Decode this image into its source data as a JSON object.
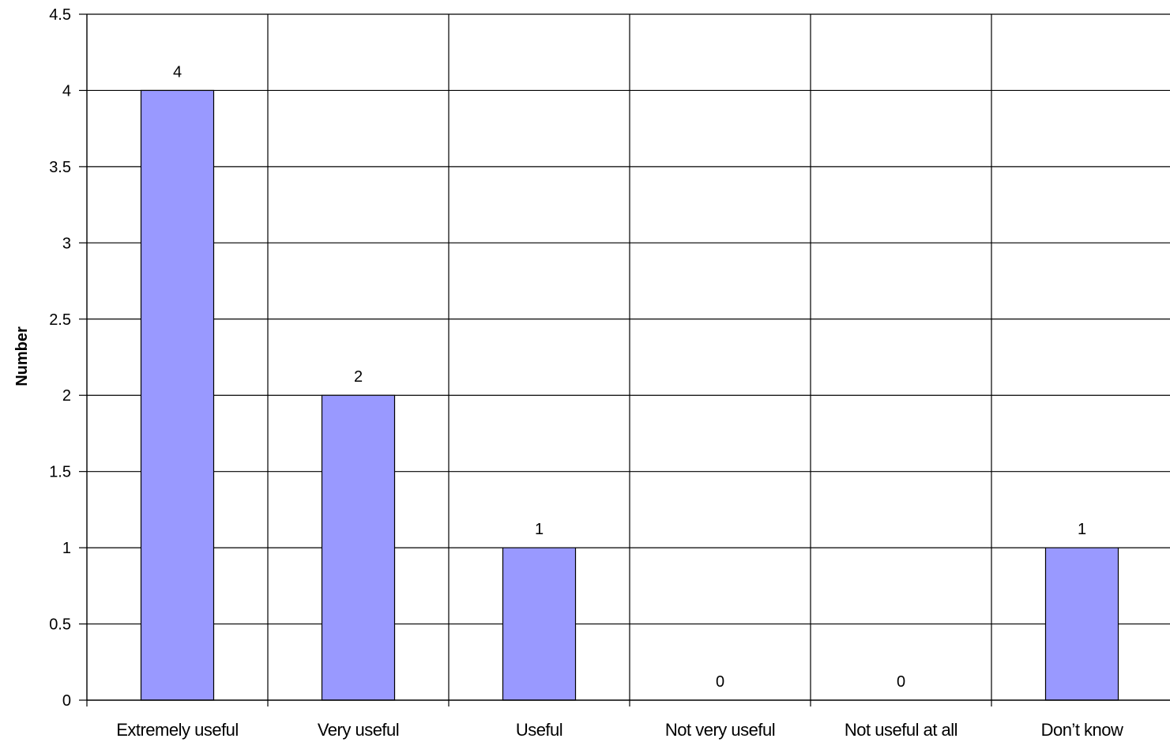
{
  "chart_data": {
    "type": "bar",
    "title": "",
    "xlabel": "",
    "ylabel": "Number",
    "categories": [
      "Extremely useful",
      "Very useful",
      "Useful",
      "Not very useful",
      "Not useful at all",
      "Don’t know"
    ],
    "values": [
      4,
      2,
      1,
      0,
      0,
      1
    ],
    "data_labels": [
      "4",
      "2",
      "1",
      "0",
      "0",
      "1"
    ],
    "ylim": [
      0,
      4.5
    ],
    "yticks": [
      0,
      0.5,
      1,
      1.5,
      2,
      2.5,
      3,
      3.5,
      4,
      4.5
    ],
    "ytick_labels": [
      "0",
      "0.5",
      "1",
      "1.5",
      "2",
      "2.5",
      "3",
      "3.5",
      "4",
      "4.5"
    ],
    "grid": true,
    "vertical_gridlines": true,
    "legend": "none",
    "bar_color": "#9999ff",
    "bar_edge_color": "#000000"
  }
}
